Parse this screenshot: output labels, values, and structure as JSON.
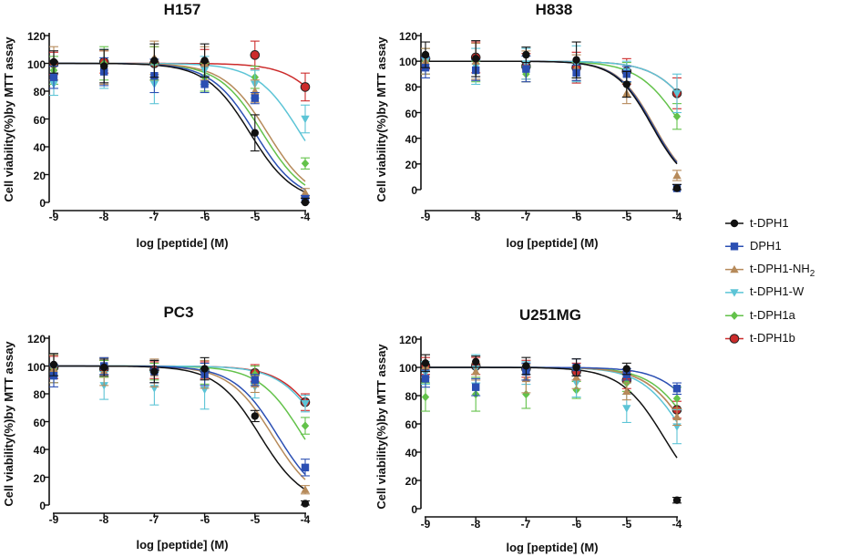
{
  "colors": {
    "t-DPH1": "#111111",
    "DPH1": "#2b4fb3",
    "t-DPH1-NH2": "#b68a5a",
    "t-DPH1-W": "#5cc4d6",
    "t-DPH1a": "#63c24a",
    "t-DPH1b": "#cc2b2b"
  },
  "legend": {
    "items": [
      {
        "key": "t-DPH1",
        "label": "t-DPH1",
        "marker": "circle"
      },
      {
        "key": "DPH1",
        "label": "DPH1",
        "marker": "square"
      },
      {
        "key": "t-DPH1-NH2",
        "label": "t-DPH1-NH",
        "sub": "2",
        "marker": "triangle-up"
      },
      {
        "key": "t-DPH1-W",
        "label": "t-DPH1-W",
        "marker": "triangle-down"
      },
      {
        "key": "t-DPH1a",
        "label": "t-DPH1a",
        "marker": "diamond"
      },
      {
        "key": "t-DPH1b",
        "label": "t-DPH1b",
        "marker": "circle-outline"
      }
    ]
  },
  "chart_data": [
    {
      "type": "scatter",
      "title": "H157",
      "xlabel": "log [peptide] (M)",
      "ylabel": "Cell viability(%)by MTT assay",
      "xlim": [
        -9,
        -4
      ],
      "ylim": [
        0,
        120
      ],
      "xticks": [
        "-9",
        "-8",
        "-7",
        "-6",
        "-5",
        "-4"
      ],
      "yticks": [
        "0",
        "20",
        "40",
        "60",
        "80",
        "100",
        "120"
      ],
      "x": [
        -9,
        -8,
        -7,
        -6,
        -5,
        -4
      ],
      "series": [
        {
          "name": "t-DPH1",
          "values": [
            101,
            98,
            102,
            102,
            50,
            0
          ],
          "err": [
            8,
            12,
            12,
            12,
            13,
            3
          ],
          "ic50": -5.1,
          "hill": 1.0
        },
        {
          "name": "DPH1",
          "values": [
            90,
            94,
            91,
            85,
            75,
            2
          ],
          "err": [
            8,
            10,
            12,
            6,
            4,
            3
          ],
          "ic50": -5.0,
          "hill": 1.0
        },
        {
          "name": "t-DPH1-NH2",
          "values": [
            100,
            97,
            104,
            100,
            80,
            7
          ],
          "err": [
            12,
            12,
            12,
            12,
            8,
            3
          ],
          "ic50": -4.75,
          "hill": 1.0
        },
        {
          "name": "t-DPH1-W",
          "values": [
            85,
            96,
            85,
            95,
            85,
            60
          ],
          "err": [
            8,
            14,
            14,
            10,
            10,
            10
          ],
          "ic50": -4.1,
          "hill": 1.0
        },
        {
          "name": "t-DPH1a",
          "values": [
            95,
            100,
            100,
            90,
            90,
            28
          ],
          "err": [
            10,
            12,
            12,
            10,
            8,
            4
          ],
          "ic50": -4.85,
          "hill": 1.0
        },
        {
          "name": "t-DPH1b",
          "values": [
            100,
            101,
            100,
            100,
            106,
            83
          ],
          "err": [
            8,
            8,
            12,
            10,
            10,
            10
          ],
          "ic50": -3.3,
          "hill": 1.0
        }
      ]
    },
    {
      "type": "scatter",
      "title": "H838",
      "xlabel": "log [peptide] (M)",
      "ylabel": "Cell viability(%)by MTT assay",
      "xlim": [
        -9,
        -4
      ],
      "ylim": [
        0,
        120
      ],
      "xticks": [
        "-9",
        "-8",
        "-7",
        "-6",
        "-5",
        "-4"
      ],
      "yticks": [
        "0",
        "20",
        "40",
        "60",
        "80",
        "100",
        "120"
      ],
      "x": [
        -9,
        -8,
        -7,
        -6,
        -5,
        -4
      ],
      "series": [
        {
          "name": "t-DPH1",
          "values": [
            105,
            102,
            105,
            101,
            82,
            1
          ],
          "err": [
            10,
            14,
            6,
            14,
            10,
            3
          ],
          "ic50": -4.5,
          "hill": 1.2
        },
        {
          "name": "DPH1",
          "values": [
            95,
            93,
            94,
            91,
            90,
            1
          ],
          "err": [
            8,
            8,
            10,
            6,
            6,
            3
          ],
          "ic50": -4.48,
          "hill": 1.2
        },
        {
          "name": "t-DPH1-NH2",
          "values": [
            100,
            100,
            96,
            95,
            75,
            11
          ],
          "err": [
            10,
            14,
            12,
            10,
            8,
            4
          ],
          "ic50": -4.46,
          "hill": 1.2
        },
        {
          "name": "t-DPH1-W",
          "values": [
            100,
            96,
            98,
            98,
            92,
            75
          ],
          "err": [
            10,
            14,
            12,
            14,
            8,
            15
          ],
          "ic50": -3.5,
          "hill": 1.0
        },
        {
          "name": "t-DPH1a",
          "values": [
            100,
            92,
            90,
            93,
            91,
            57
          ],
          "err": [
            10,
            8,
            6,
            6,
            8,
            10
          ],
          "ic50": -3.9,
          "hill": 1.0
        },
        {
          "name": "t-DPH1b",
          "values": [
            102,
            103,
            96,
            95,
            92,
            75
          ],
          "err": [
            8,
            12,
            10,
            12,
            10,
            12
          ],
          "ic50": -3.5,
          "hill": 1.0
        }
      ]
    },
    {
      "type": "scatter",
      "title": "PC3",
      "xlabel": "log [peptide] (M)",
      "ylabel": "Cell viability(%)by MTT assay",
      "xlim": [
        -9,
        -4
      ],
      "ylim": [
        0,
        120
      ],
      "xticks": [
        "-9",
        "-8",
        "-7",
        "-6",
        "-5",
        "-4"
      ],
      "yticks": [
        "0",
        "20",
        "40",
        "60",
        "80",
        "100",
        "120"
      ],
      "x": [
        -9,
        -8,
        -7,
        -6,
        -5,
        -4
      ],
      "series": [
        {
          "name": "t-DPH1",
          "values": [
            101,
            99,
            96,
            98,
            64,
            1
          ],
          "err": [
            8,
            6,
            8,
            8,
            4,
            2
          ],
          "ic50": -4.9,
          "hill": 1.0
        },
        {
          "name": "DPH1",
          "values": [
            93,
            100,
            96,
            94,
            90,
            27
          ],
          "err": [
            8,
            6,
            8,
            8,
            4,
            6
          ],
          "ic50": -4.55,
          "hill": 1.0
        },
        {
          "name": "t-DPH1-NH2",
          "values": [
            98,
            96,
            95,
            94,
            87,
            11
          ],
          "err": [
            10,
            10,
            10,
            10,
            6,
            3
          ],
          "ic50": -4.65,
          "hill": 1.0
        },
        {
          "name": "t-DPH1-W",
          "values": [
            98,
            86,
            84,
            83,
            85,
            73
          ],
          "err": [
            10,
            10,
            12,
            14,
            8,
            6
          ],
          "ic50": -3.6,
          "hill": 1.0
        },
        {
          "name": "t-DPH1a",
          "values": [
            98,
            98,
            96,
            93,
            94,
            57
          ],
          "err": [
            10,
            6,
            6,
            6,
            6,
            6
          ],
          "ic50": -4.05,
          "hill": 1.0
        },
        {
          "name": "t-DPH1b",
          "values": [
            99,
            98,
            97,
            97,
            95,
            74
          ],
          "err": [
            8,
            6,
            6,
            6,
            6,
            6
          ],
          "ic50": -3.55,
          "hill": 1.0
        }
      ]
    },
    {
      "type": "scatter",
      "title": "U251MG",
      "xlabel": "log [peptide] (M)",
      "ylabel": "Cell viability(%)by MTT assay",
      "xlim": [
        -9,
        -4
      ],
      "ylim": [
        0,
        120
      ],
      "xticks": [
        "-9",
        "-8",
        "-7",
        "-6",
        "-5",
        "-4"
      ],
      "yticks": [
        "0",
        "20",
        "40",
        "60",
        "80",
        "100",
        "120"
      ],
      "x": [
        -9,
        -8,
        -7,
        -6,
        -5,
        -4
      ],
      "series": [
        {
          "name": "t-DPH1",
          "values": [
            103,
            104,
            101,
            100,
            99,
            6
          ],
          "err": [
            6,
            4,
            6,
            6,
            4,
            2
          ],
          "ic50": -4.25,
          "hill": 1.0
        },
        {
          "name": "DPH1",
          "values": [
            92,
            86,
            97,
            100,
            95,
            85
          ],
          "err": [
            6,
            6,
            6,
            6,
            4,
            4
          ],
          "ic50": -3.3,
          "hill": 1.0
        },
        {
          "name": "t-DPH1-NH2",
          "values": [
            101,
            97,
            92,
            93,
            83,
            65
          ],
          "err": [
            8,
            6,
            10,
            8,
            6,
            6
          ],
          "ic50": -3.7,
          "hill": 1.0
        },
        {
          "name": "t-DPH1-W",
          "values": [
            96,
            99,
            96,
            89,
            71,
            58
          ],
          "err": [
            8,
            10,
            8,
            10,
            10,
            12
          ],
          "ic50": -3.8,
          "hill": 1.0
        },
        {
          "name": "t-DPH1a",
          "values": [
            79,
            81,
            81,
            84,
            89,
            78
          ],
          "err": [
            10,
            12,
            10,
            6,
            6,
            8
          ],
          "ic50": -3.6,
          "hill": 1.0
        },
        {
          "name": "t-DPH1b",
          "values": [
            101,
            101,
            99,
            97,
            91,
            70
          ],
          "err": [
            6,
            6,
            6,
            6,
            6,
            6
          ],
          "ic50": -3.7,
          "hill": 1.0
        }
      ]
    }
  ]
}
